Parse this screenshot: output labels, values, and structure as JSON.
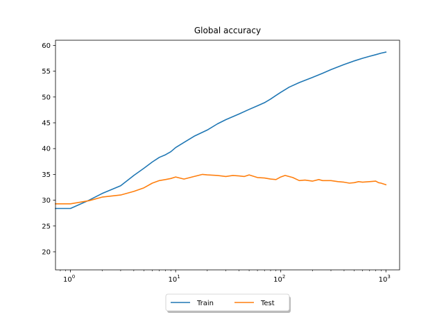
{
  "chart_data": {
    "type": "line",
    "title": "Global accuracy",
    "xlabel": "",
    "ylabel": "",
    "xscale": "log",
    "xlim": [
      0.72,
      1350
    ],
    "ylim": [
      16.5,
      61.0
    ],
    "yticks": [
      20,
      25,
      30,
      35,
      40,
      45,
      50,
      55,
      60
    ],
    "xticks": [
      {
        "value": 1,
        "base": "10",
        "exp": "0"
      },
      {
        "value": 10,
        "base": "10",
        "exp": "1"
      },
      {
        "value": 100,
        "base": "10",
        "exp": "2"
      },
      {
        "value": 1000,
        "base": "10",
        "exp": "3"
      }
    ],
    "grid": false,
    "legend_position": "bottom-center-outside",
    "series": [
      {
        "name": "Train",
        "color": "#1f77b4",
        "points": [
          [
            0.72,
            28.4
          ],
          [
            1,
            28.4
          ],
          [
            1.5,
            30.0
          ],
          [
            2,
            31.3
          ],
          [
            3,
            32.8
          ],
          [
            4,
            34.8
          ],
          [
            5,
            36.2
          ],
          [
            6,
            37.4
          ],
          [
            7,
            38.3
          ],
          [
            8,
            38.8
          ],
          [
            9,
            39.4
          ],
          [
            10,
            40.2
          ],
          [
            12,
            41.2
          ],
          [
            15,
            42.4
          ],
          [
            20,
            43.6
          ],
          [
            25,
            44.8
          ],
          [
            30,
            45.6
          ],
          [
            40,
            46.7
          ],
          [
            50,
            47.6
          ],
          [
            60,
            48.3
          ],
          [
            70,
            48.9
          ],
          [
            80,
            49.6
          ],
          [
            90,
            50.3
          ],
          [
            100,
            50.9
          ],
          [
            120,
            51.9
          ],
          [
            150,
            52.8
          ],
          [
            200,
            53.8
          ],
          [
            250,
            54.6
          ],
          [
            300,
            55.3
          ],
          [
            400,
            56.3
          ],
          [
            500,
            57.0
          ],
          [
            600,
            57.5
          ],
          [
            700,
            57.9
          ],
          [
            800,
            58.2
          ],
          [
            900,
            58.5
          ],
          [
            1000,
            58.7
          ]
        ]
      },
      {
        "name": "Test",
        "color": "#ff7f0e",
        "points": [
          [
            0.72,
            29.3
          ],
          [
            1,
            29.3
          ],
          [
            1.5,
            29.9
          ],
          [
            2,
            30.6
          ],
          [
            3,
            31.0
          ],
          [
            4,
            31.7
          ],
          [
            5,
            32.4
          ],
          [
            6,
            33.3
          ],
          [
            7,
            33.8
          ],
          [
            8,
            34.0
          ],
          [
            9,
            34.2
          ],
          [
            10,
            34.5
          ],
          [
            12,
            34.1
          ],
          [
            15,
            34.6
          ],
          [
            18,
            35.0
          ],
          [
            20,
            34.9
          ],
          [
            25,
            34.8
          ],
          [
            30,
            34.6
          ],
          [
            35,
            34.8
          ],
          [
            40,
            34.7
          ],
          [
            45,
            34.6
          ],
          [
            50,
            34.9
          ],
          [
            60,
            34.4
          ],
          [
            70,
            34.3
          ],
          [
            80,
            34.1
          ],
          [
            90,
            34.0
          ],
          [
            100,
            34.5
          ],
          [
            110,
            34.8
          ],
          [
            130,
            34.4
          ],
          [
            150,
            33.8
          ],
          [
            170,
            33.9
          ],
          [
            200,
            33.7
          ],
          [
            230,
            34.0
          ],
          [
            250,
            33.8
          ],
          [
            300,
            33.8
          ],
          [
            350,
            33.6
          ],
          [
            400,
            33.5
          ],
          [
            450,
            33.3
          ],
          [
            500,
            33.4
          ],
          [
            550,
            33.6
          ],
          [
            600,
            33.5
          ],
          [
            700,
            33.6
          ],
          [
            800,
            33.7
          ],
          [
            850,
            33.4
          ],
          [
            900,
            33.3
          ],
          [
            1000,
            33.0
          ]
        ]
      }
    ]
  }
}
